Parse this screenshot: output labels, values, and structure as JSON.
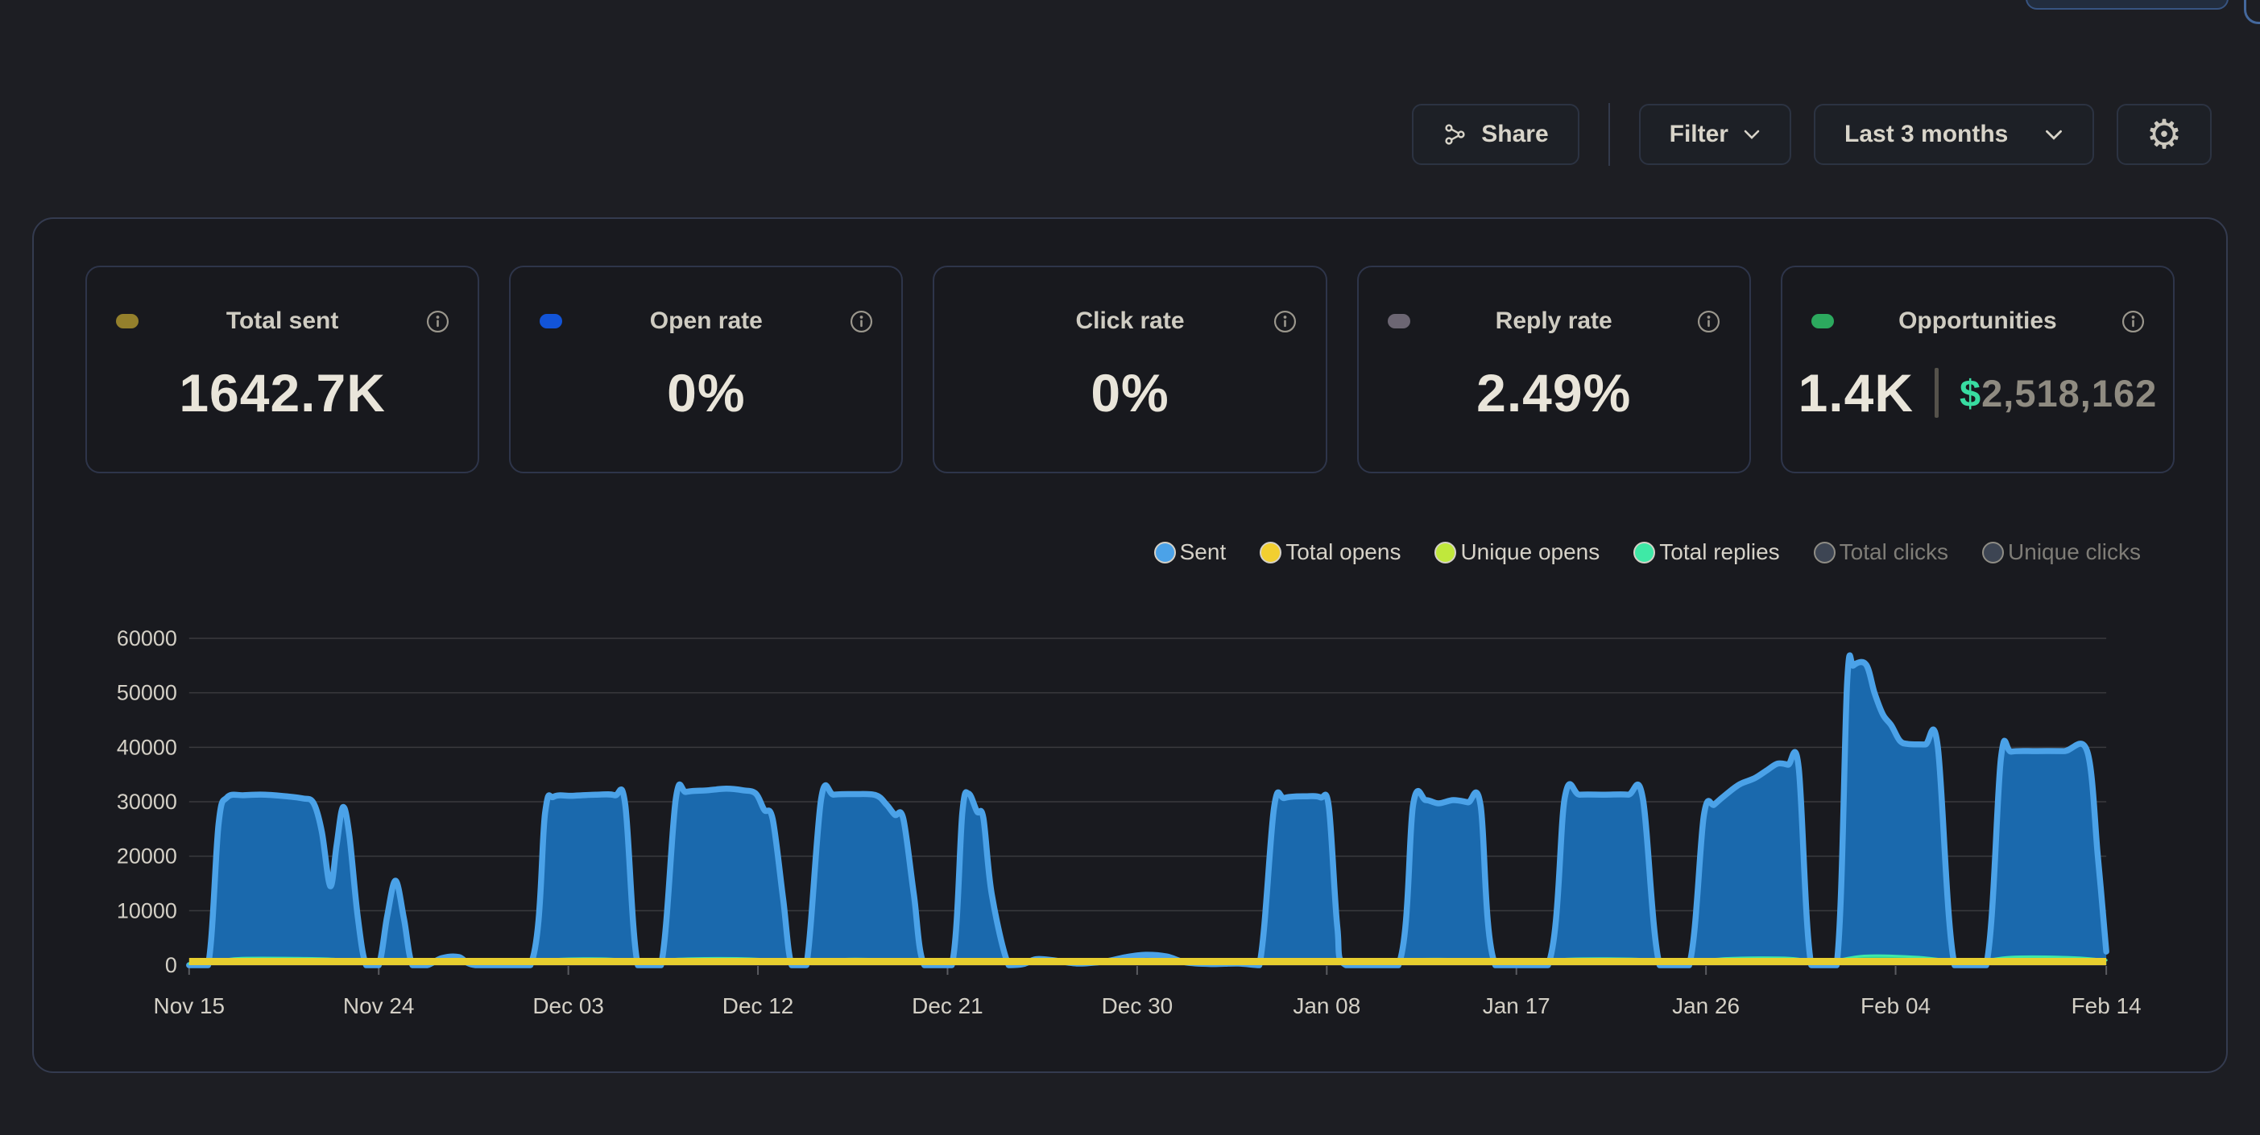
{
  "toolbar": {
    "share_label": "Share",
    "filter_label": "Filter",
    "date_range_label": "Last 3 months"
  },
  "stat_cards": [
    {
      "id": "total-sent",
      "label": "Total sent",
      "value": "1642.7K",
      "dot_color": "#94802c"
    },
    {
      "id": "open-rate",
      "label": "Open rate",
      "value": "0%",
      "dot_color": "#1254d8"
    },
    {
      "id": "click-rate",
      "label": "Click rate",
      "value": "0%",
      "dot_color": null
    },
    {
      "id": "reply-rate",
      "label": "Reply rate",
      "value": "2.49%",
      "dot_color": "#6c6673"
    },
    {
      "id": "opportunities",
      "label": "Opportunities",
      "value": "1.4K",
      "dot_color": "#2ca95e",
      "currency_symbol": "$",
      "pipeline_value": "2,518,162"
    }
  ],
  "chart_data": {
    "type": "area",
    "x_unit": "days since Nov 15",
    "x_max_day": 91,
    "ylim": [
      0,
      60000
    ],
    "y_ticks": [
      0,
      10000,
      20000,
      30000,
      40000,
      50000,
      60000
    ],
    "grid": "horizontal",
    "legend_position": "top-right",
    "x_ticks": [
      {
        "day": 0,
        "label": "Nov 15"
      },
      {
        "day": 9,
        "label": "Nov 24"
      },
      {
        "day": 18,
        "label": "Dec 03"
      },
      {
        "day": 27,
        "label": "Dec 12"
      },
      {
        "day": 36,
        "label": "Dec 21"
      },
      {
        "day": 45,
        "label": "Dec 30"
      },
      {
        "day": 54,
        "label": "Jan 08"
      },
      {
        "day": 63,
        "label": "Jan 17"
      },
      {
        "day": 72,
        "label": "Jan 26"
      },
      {
        "day": 81,
        "label": "Feb 04"
      },
      {
        "day": 91,
        "label": "Feb 14"
      }
    ],
    "legend": [
      {
        "label": "Sent",
        "color": "#4ba2e8",
        "enabled": true
      },
      {
        "label": "Total opens",
        "color": "#f2cf30",
        "enabled": true
      },
      {
        "label": "Unique opens",
        "color": "#c0e83c",
        "enabled": true
      },
      {
        "label": "Total replies",
        "color": "#3fe9a6",
        "enabled": true
      },
      {
        "label": "Total clicks",
        "color": "#3d4553",
        "enabled": false
      },
      {
        "label": "Unique clicks",
        "color": "#3d4553",
        "enabled": false
      }
    ],
    "series": [
      {
        "name": "Sent",
        "stroke": "#4ba2e8",
        "fill": "#1a69ad",
        "stroke_width": 7.5,
        "points": [
          [
            0,
            0
          ],
          [
            0.9,
            0
          ],
          [
            1.4,
            26000
          ],
          [
            1.8,
            30800
          ],
          [
            2.6,
            31200
          ],
          [
            3.6,
            31300
          ],
          [
            4.6,
            31000
          ],
          [
            5.4,
            30600
          ],
          [
            5.9,
            29800
          ],
          [
            6.3,
            24500
          ],
          [
            6.7,
            14500
          ],
          [
            7.0,
            22000
          ],
          [
            7.3,
            29000
          ],
          [
            7.6,
            24000
          ],
          [
            8.0,
            9000
          ],
          [
            8.4,
            0
          ],
          [
            9.0,
            0
          ],
          [
            9.4,
            9000
          ],
          [
            9.8,
            15500
          ],
          [
            10.2,
            8500
          ],
          [
            10.6,
            0
          ],
          [
            11.3,
            0
          ],
          [
            12.0,
            1300
          ],
          [
            12.8,
            1500
          ],
          [
            13.6,
            0
          ],
          [
            16.2,
            0
          ],
          [
            16.9,
            28000
          ],
          [
            17.3,
            30900
          ],
          [
            18.2,
            31100
          ],
          [
            19.3,
            31300
          ],
          [
            20.2,
            31200
          ],
          [
            20.7,
            29500
          ],
          [
            21.3,
            0
          ],
          [
            22.4,
            0
          ],
          [
            23.1,
            30500
          ],
          [
            23.6,
            31800
          ],
          [
            24.6,
            32100
          ],
          [
            25.5,
            32400
          ],
          [
            26.3,
            32100
          ],
          [
            26.9,
            31500
          ],
          [
            27.3,
            28500
          ],
          [
            27.7,
            26800
          ],
          [
            28.2,
            12000
          ],
          [
            28.6,
            0
          ],
          [
            29.3,
            0
          ],
          [
            30.0,
            30500
          ],
          [
            30.6,
            31300
          ],
          [
            31.6,
            31400
          ],
          [
            32.6,
            31200
          ],
          [
            33.1,
            29500
          ],
          [
            33.5,
            27600
          ],
          [
            33.9,
            26900
          ],
          [
            34.4,
            13000
          ],
          [
            34.9,
            0
          ],
          [
            36.2,
            0
          ],
          [
            36.7,
            28000
          ],
          [
            37.0,
            31500
          ],
          [
            37.4,
            28200
          ],
          [
            37.7,
            27000
          ],
          [
            38.1,
            13000
          ],
          [
            38.9,
            0
          ],
          [
            39.6,
            200
          ],
          [
            40.2,
            1100
          ],
          [
            41.0,
            900
          ],
          [
            42.2,
            300
          ],
          [
            43.5,
            700
          ],
          [
            44.5,
            1500
          ],
          [
            45.4,
            1900
          ],
          [
            46.4,
            1600
          ],
          [
            47.3,
            500
          ],
          [
            48.5,
            200
          ],
          [
            49.8,
            300
          ],
          [
            50.8,
            0
          ],
          [
            51.5,
            29000
          ],
          [
            52.0,
            30700
          ],
          [
            53.0,
            31000
          ],
          [
            53.7,
            30800
          ],
          [
            54.1,
            29000
          ],
          [
            54.5,
            7000
          ],
          [
            54.9,
            0
          ],
          [
            57.4,
            0
          ],
          [
            58.1,
            29500
          ],
          [
            58.7,
            30300
          ],
          [
            59.3,
            29700
          ],
          [
            60.0,
            30300
          ],
          [
            60.7,
            29900
          ],
          [
            61.3,
            29400
          ],
          [
            62.0,
            0
          ],
          [
            64.5,
            0
          ],
          [
            65.3,
            30800
          ],
          [
            66.0,
            31300
          ],
          [
            67.2,
            31300
          ],
          [
            68.3,
            31300
          ],
          [
            69.0,
            30700
          ],
          [
            69.8,
            0
          ],
          [
            71.2,
            0
          ],
          [
            71.9,
            27500
          ],
          [
            72.4,
            29500
          ],
          [
            73.0,
            31500
          ],
          [
            73.6,
            33200
          ],
          [
            74.3,
            34300
          ],
          [
            74.9,
            35800
          ],
          [
            75.4,
            37000
          ],
          [
            75.9,
            36800
          ],
          [
            76.4,
            36300
          ],
          [
            77.0,
            0
          ],
          [
            78.2,
            0
          ],
          [
            78.7,
            52000
          ],
          [
            79.0,
            55000
          ],
          [
            79.6,
            55200
          ],
          [
            80.0,
            50000
          ],
          [
            80.4,
            46000
          ],
          [
            80.8,
            44000
          ],
          [
            81.2,
            41200
          ],
          [
            81.6,
            40600
          ],
          [
            82.4,
            40500
          ],
          [
            83.0,
            40200
          ],
          [
            83.8,
            0
          ],
          [
            85.3,
            0
          ],
          [
            86.0,
            38000
          ],
          [
            86.5,
            39200
          ],
          [
            87.7,
            39300
          ],
          [
            89.0,
            39300
          ],
          [
            90.1,
            39200
          ],
          [
            90.6,
            20000
          ],
          [
            91,
            2500
          ]
        ]
      },
      {
        "name": "Total replies",
        "stroke": "#3fe9a6",
        "fill": "#2fd596",
        "stroke_width": 3,
        "points": [
          [
            0,
            250
          ],
          [
            1.5,
            900
          ],
          [
            2.5,
            1300
          ],
          [
            5,
            1300
          ],
          [
            7,
            1100
          ],
          [
            8.5,
            400
          ],
          [
            9.8,
            700
          ],
          [
            11,
            300
          ],
          [
            12.5,
            350
          ],
          [
            14,
            250
          ],
          [
            16.5,
            400
          ],
          [
            17.5,
            1100
          ],
          [
            20,
            1150
          ],
          [
            21.5,
            400
          ],
          [
            23,
            1100
          ],
          [
            26,
            1250
          ],
          [
            28,
            900
          ],
          [
            29.5,
            400
          ],
          [
            31,
            1100
          ],
          [
            33,
            1000
          ],
          [
            35,
            350
          ],
          [
            36.8,
            900
          ],
          [
            38,
            600
          ],
          [
            40,
            350
          ],
          [
            45,
            450
          ],
          [
            49,
            300
          ],
          [
            51.5,
            1000
          ],
          [
            54,
            1000
          ],
          [
            55.5,
            350
          ],
          [
            58,
            1050
          ],
          [
            61,
            1000
          ],
          [
            63,
            350
          ],
          [
            65.5,
            1150
          ],
          [
            69,
            1100
          ],
          [
            70.5,
            400
          ],
          [
            73,
            1250
          ],
          [
            76,
            1300
          ],
          [
            77.5,
            500
          ],
          [
            79.5,
            1700
          ],
          [
            82,
            1500
          ],
          [
            84.5,
            600
          ],
          [
            86.5,
            1500
          ],
          [
            89.5,
            1400
          ],
          [
            91,
            900
          ]
        ]
      }
    ],
    "baseline_line": {
      "name": "Total opens",
      "value": 0,
      "color": "#e7ce2f",
      "stroke_width": 9
    }
  },
  "colors": {
    "accent_blue": "#4ba2e8",
    "accent_yellow": "#e7ce2f",
    "accent_green": "#3fe9a6",
    "currency_green": "#38dca1"
  }
}
